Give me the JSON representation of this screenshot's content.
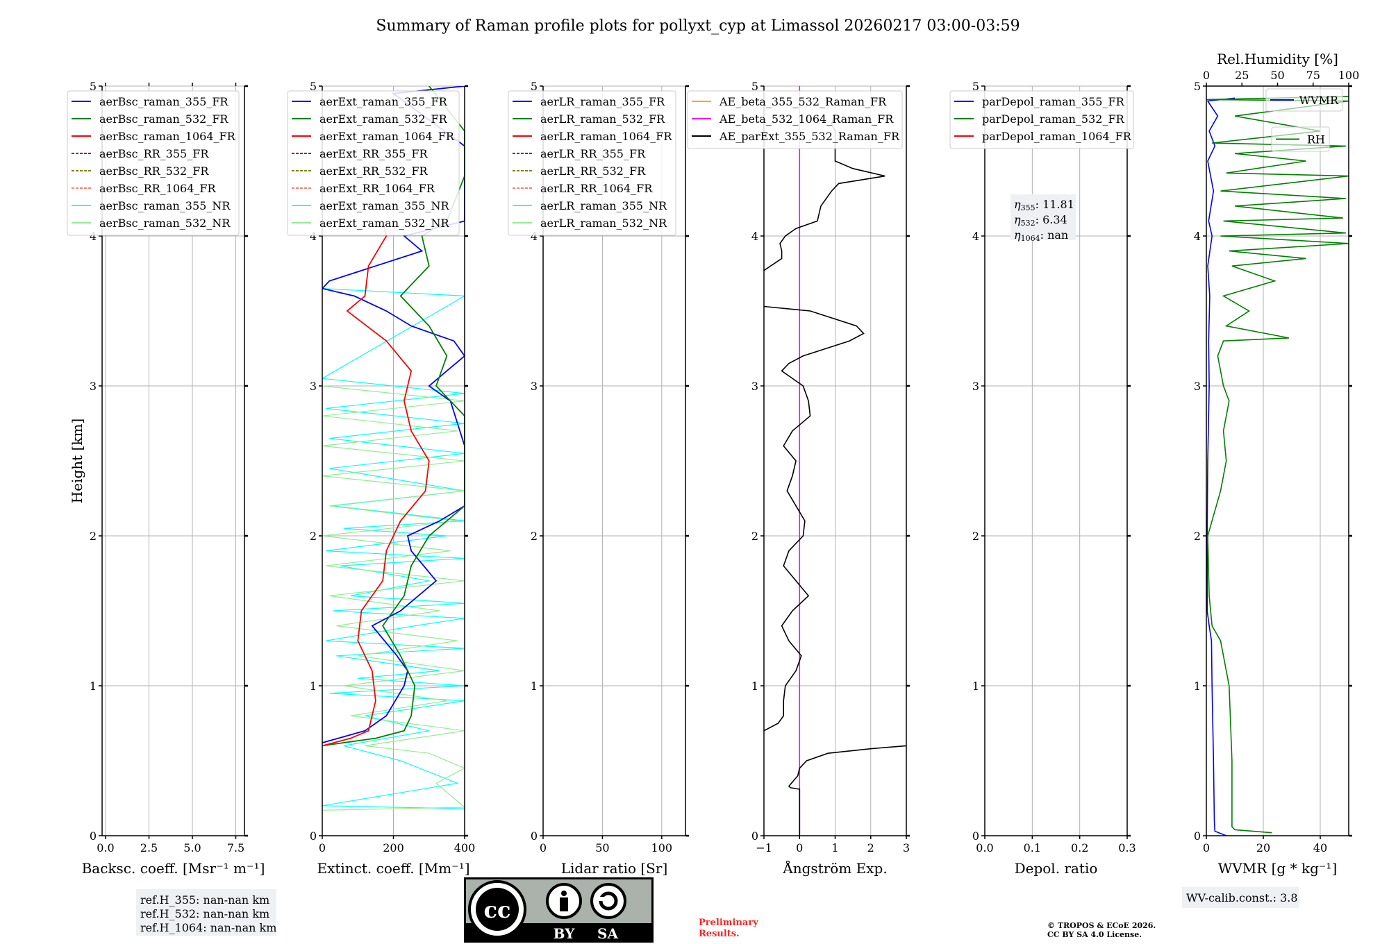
{
  "title": "Summary of Raman profile plots for pollyxt_cyp at Limassol 20260217 03:00-03:59",
  "colors": {
    "blue": "#0000ff",
    "green": "#008000",
    "red": "#ff0000",
    "purple": "#800080",
    "olive": "#808000",
    "salmon": "#fa8072",
    "cyan": "#00ffff",
    "lightgreen": "#90ee90",
    "orange": "#ffa500",
    "magenta": "#ff00ff",
    "black": "#000000"
  },
  "chart_data": [
    {
      "type": "line",
      "id": "bsc",
      "xlabel": "Backsc. coeff. [Msr⁻¹ m⁻¹]",
      "ylabel": "Height [km]",
      "xlim": [
        -0.2,
        8
      ],
      "ylim": [
        0,
        5
      ],
      "xticks": [
        "0.0",
        "2.5",
        "5.0",
        "7.5"
      ],
      "xtickvals": [
        0,
        2.5,
        5,
        7.5
      ],
      "yticks": [
        "0",
        "1",
        "2",
        "3",
        "4",
        "5"
      ],
      "grid": true,
      "legend": [
        {
          "label": "aerBsc_raman_355_FR",
          "color": "blue",
          "dash": false
        },
        {
          "label": "aerBsc_raman_532_FR",
          "color": "green",
          "dash": false
        },
        {
          "label": "aerBsc_raman_1064_FR",
          "color": "red",
          "dash": false
        },
        {
          "label": "aerBsc_RR_355_FR",
          "color": "purple",
          "dash": true
        },
        {
          "label": "aerBsc_RR_532_FR",
          "color": "olive",
          "dash": true
        },
        {
          "label": "aerBsc_RR_1064_FR",
          "color": "salmon",
          "dash": true
        },
        {
          "label": "aerBsc_raman_355_NR",
          "color": "cyan",
          "dash": false
        },
        {
          "label": "aerBsc_raman_532_NR",
          "color": "lightgreen",
          "dash": false
        }
      ],
      "series": []
    },
    {
      "type": "line",
      "id": "ext",
      "xlabel": "Extinct. coeff. [Mm⁻¹]",
      "xlim": [
        0,
        400
      ],
      "ylim": [
        0,
        5
      ],
      "xticks": [
        "0",
        "200",
        "400"
      ],
      "xtickvals": [
        0,
        200,
        400
      ],
      "yticks": [
        "0",
        "1",
        "2",
        "3",
        "4",
        "5"
      ],
      "grid": true,
      "legend": [
        {
          "label": "aerExt_raman_355_FR",
          "color": "blue",
          "dash": false
        },
        {
          "label": "aerExt_raman_532_FR",
          "color": "green",
          "dash": false
        },
        {
          "label": "aerExt_raman_1064_FR",
          "color": "red",
          "dash": false
        },
        {
          "label": "aerExt_RR_355_FR",
          "color": "purple",
          "dash": true
        },
        {
          "label": "aerExt_RR_532_FR",
          "color": "olive",
          "dash": true
        },
        {
          "label": "aerExt_RR_1064_FR",
          "color": "salmon",
          "dash": true
        },
        {
          "label": "aerExt_raman_355_NR",
          "color": "cyan",
          "dash": false
        },
        {
          "label": "aerExt_raman_532_NR",
          "color": "lightgreen",
          "dash": false
        }
      ],
      "series": [
        {
          "name": "aerExt_raman_355_NR",
          "color": "cyan",
          "width": 1.2,
          "h": [
            0.18,
            0.2,
            0.35,
            0.5,
            0.6,
            0.7,
            0.8,
            0.9,
            0.95,
            1.0,
            1.05,
            1.1,
            1.2,
            1.25,
            1.3,
            1.4,
            1.45,
            1.5,
            1.55,
            1.6,
            1.7,
            1.8,
            1.85,
            1.9,
            2.0,
            2.05,
            2.1,
            2.2,
            2.3,
            2.45,
            2.55,
            2.65,
            2.75,
            2.85,
            2.95,
            3.05,
            3.6,
            3.65
          ],
          "x": [
            400,
            0,
            380,
            220,
            60,
            300,
            120,
            400,
            20,
            400,
            100,
            330,
            40,
            400,
            10,
            260,
            400,
            30,
            400,
            80,
            300,
            50,
            400,
            10,
            350,
            60,
            400,
            30,
            400,
            20,
            400,
            20,
            400,
            10,
            400,
            0,
            400,
            0
          ]
        },
        {
          "name": "aerExt_raman_532_NR",
          "color": "lightgreen",
          "width": 1.2,
          "h": [
            0.17,
            0.19,
            0.35,
            0.45,
            0.55,
            0.6,
            0.7,
            0.8,
            0.9,
            1.0,
            1.1,
            1.2,
            1.3,
            1.4,
            1.5,
            1.6,
            1.7,
            1.8,
            1.9,
            2.0,
            2.1,
            2.2,
            2.3,
            2.4,
            2.5,
            2.6,
            2.7,
            2.8,
            2.9,
            3.0
          ],
          "x": [
            0,
            400,
            320,
            400,
            300,
            120,
            400,
            80,
            350,
            60,
            400,
            100,
            380,
            40,
            330,
            20,
            400,
            10,
            360,
            0,
            380,
            20,
            400,
            0,
            400,
            0,
            380,
            0,
            400,
            0
          ]
        },
        {
          "name": "aerExt_raman_355_FR",
          "color": "blue",
          "width": 1.8,
          "h": [
            0.62,
            0.7,
            0.8,
            1.0,
            1.1,
            1.2,
            1.4,
            1.5,
            1.7,
            1.9,
            2.0,
            2.1,
            2.2,
            2.6,
            2.9,
            3.0,
            3.2,
            3.3,
            3.4,
            3.5,
            3.6,
            3.65,
            3.7,
            3.8,
            3.9,
            4.0,
            4.1,
            4.4,
            4.6,
            4.95,
            5.0
          ],
          "x": [
            0,
            120,
            180,
            230,
            240,
            210,
            140,
            220,
            320,
            250,
            240,
            330,
            400,
            400,
            360,
            300,
            400,
            370,
            250,
            180,
            90,
            0,
            20,
            150,
            280,
            230,
            400,
            400,
            400,
            200,
            400
          ]
        },
        {
          "name": "aerExt_raman_532_FR",
          "color": "green",
          "width": 1.8,
          "h": [
            0.6,
            0.65,
            0.7,
            0.8,
            1.0,
            1.2,
            1.4,
            1.6,
            1.8,
            2.0,
            2.2,
            2.8,
            3.0,
            3.2,
            3.4,
            3.6,
            3.8,
            4.0,
            4.1,
            4.4,
            4.7,
            5.0
          ],
          "x": [
            0,
            150,
            230,
            250,
            260,
            220,
            170,
            230,
            250,
            300,
            400,
            400,
            320,
            350,
            300,
            220,
            300,
            280,
            350,
            400,
            400,
            300
          ]
        },
        {
          "name": "aerExt_raman_1064_FR",
          "color": "red",
          "width": 1.8,
          "h": [
            0.6,
            0.65,
            0.7,
            0.9,
            1.1,
            1.3,
            1.5,
            1.7,
            1.9,
            2.1,
            2.3,
            2.5,
            2.7,
            2.9,
            3.1,
            3.3,
            3.5,
            3.6,
            3.8,
            4.0,
            4.1
          ],
          "x": [
            0,
            80,
            130,
            150,
            140,
            100,
            110,
            170,
            180,
            220,
            290,
            300,
            250,
            230,
            250,
            180,
            70,
            120,
            130,
            180,
            170
          ]
        }
      ]
    },
    {
      "type": "line",
      "id": "lr",
      "xlabel": "Lidar ratio [Sr]",
      "xlim": [
        0,
        120
      ],
      "ylim": [
        0,
        5
      ],
      "xticks": [
        "0",
        "50",
        "100"
      ],
      "xtickvals": [
        0,
        50,
        100
      ],
      "yticks": [
        "0",
        "1",
        "2",
        "3",
        "4",
        "5"
      ],
      "grid": true,
      "legend": [
        {
          "label": "aerLR_raman_355_FR",
          "color": "blue",
          "dash": false
        },
        {
          "label": "aerLR_raman_532_FR",
          "color": "green",
          "dash": false
        },
        {
          "label": "aerLR_raman_1064_FR",
          "color": "red",
          "dash": false
        },
        {
          "label": "aerLR_RR_355_FR",
          "color": "purple",
          "dash": true
        },
        {
          "label": "aerLR_RR_532_FR",
          "color": "olive",
          "dash": true
        },
        {
          "label": "aerLR_RR_1064_FR",
          "color": "salmon",
          "dash": true
        },
        {
          "label": "aerLR_raman_355_NR",
          "color": "cyan",
          "dash": false
        },
        {
          "label": "aerLR_raman_532_NR",
          "color": "lightgreen",
          "dash": false
        }
      ],
      "series": []
    },
    {
      "type": "line",
      "id": "ae",
      "xlabel": "Ångström Exp.",
      "xlim": [
        -1,
        3
      ],
      "ylim": [
        0,
        5
      ],
      "xticks": [
        "−1",
        "0",
        "1",
        "2",
        "3"
      ],
      "xtickvals": [
        -1,
        0,
        1,
        2,
        3
      ],
      "yticks": [
        "0",
        "1",
        "2",
        "3",
        "4",
        "5"
      ],
      "grid": true,
      "legend": [
        {
          "label": "AE_beta_355_532_Raman_FR",
          "color": "orange",
          "dash": false
        },
        {
          "label": "AE_beta_532_1064_Raman_FR",
          "color": "magenta",
          "dash": false
        },
        {
          "label": "AE_parExt_355_532_Raman_FR",
          "color": "black",
          "dash": false
        }
      ],
      "series": [
        {
          "name": "AE_beta_532_1064_Raman_FR",
          "color": "magenta",
          "width": 1.6,
          "h": [
            0,
            5
          ],
          "x": [
            0,
            0
          ]
        },
        {
          "name": "AE_parExt_355_532_Raman_FR (a)",
          "color": "black",
          "width": 1.6,
          "h": [
            0,
            0.31,
            0.32,
            0.33,
            0.4,
            0.45,
            0.5,
            0.55,
            0.58,
            0.6
          ],
          "x": [
            0,
            0,
            -0.25,
            -0.3,
            -0.05,
            0,
            0.2,
            0.8,
            2.0,
            3.0
          ]
        },
        {
          "name": "AE_parExt_355_532_Raman_FR (b)",
          "color": "black",
          "width": 1.6,
          "h": [
            0.7,
            0.75,
            0.8,
            0.9,
            1.0,
            1.1,
            1.2,
            1.3,
            1.4,
            1.5,
            1.6,
            1.7,
            1.8,
            1.9,
            2.0,
            2.1,
            2.2,
            2.3,
            2.4,
            2.5,
            2.6,
            2.7,
            2.8,
            2.9,
            3.0,
            3.1,
            3.15,
            3.2,
            3.3,
            3.35,
            3.4,
            3.5,
            3.53
          ],
          "x": [
            -1,
            -0.6,
            -0.45,
            -0.45,
            -0.4,
            -0.1,
            0.05,
            -0.3,
            -0.5,
            -0.2,
            0.25,
            -0.1,
            -0.45,
            -0.3,
            0.1,
            0.15,
            -0.1,
            -0.35,
            -0.2,
            -0.1,
            -0.45,
            -0.2,
            0.3,
            0.25,
            0.1,
            -0.5,
            -0.3,
            0.1,
            1.4,
            1.8,
            1.6,
            0.3,
            -1
          ]
        },
        {
          "name": "AE_parExt_355_532_Raman_FR (c)",
          "color": "black",
          "width": 1.6,
          "h": [
            3.77,
            3.85,
            3.9,
            3.95,
            4.0,
            4.05,
            4.1,
            4.2,
            4.3,
            4.35,
            4.4,
            4.45,
            4.5,
            4.6,
            4.7,
            4.75,
            4.8
          ],
          "x": [
            -1,
            -0.5,
            -0.5,
            -0.55,
            -0.4,
            -0.1,
            0.5,
            0.6,
            0.9,
            1.1,
            2.4,
            1.5,
            1.0,
            1.0,
            1.0,
            0.9,
            1.0
          ]
        }
      ]
    },
    {
      "type": "line",
      "id": "depol",
      "xlabel": "Depol. ratio",
      "xlim": [
        0,
        0.3
      ],
      "ylim": [
        0,
        5
      ],
      "xticks": [
        "0.0",
        "0.1",
        "0.2",
        "0.3"
      ],
      "xtickvals": [
        0,
        0.1,
        0.2,
        0.3
      ],
      "yticks": [
        "0",
        "1",
        "2",
        "3",
        "4",
        "5"
      ],
      "grid": true,
      "legend": [
        {
          "label": "parDepol_raman_355_FR",
          "color": "blue",
          "dash": false
        },
        {
          "label": "parDepol_raman_532_FR",
          "color": "green",
          "dash": false
        },
        {
          "label": "parDepol_raman_1064_FR",
          "color": "red",
          "dash": false
        }
      ],
      "series": [],
      "annotation": [
        {
          "sym": "η",
          "sub": "355",
          "value": ": 11.81"
        },
        {
          "sym": "η",
          "sub": "532",
          "value": ": 6.34"
        },
        {
          "sym": "η",
          "sub": "1064",
          "value": ": nan"
        }
      ]
    },
    {
      "type": "line",
      "id": "wv",
      "xlabel": "WVMR [g * kg⁻¹]",
      "toplabel": "Rel.Humidity [%]",
      "xlim": [
        0,
        50
      ],
      "toplim": [
        0,
        100
      ],
      "ylim": [
        0,
        5
      ],
      "xticks": [
        "0",
        "20",
        "40"
      ],
      "xtickvals": [
        0,
        20,
        40
      ],
      "topticks": [
        "0",
        "25",
        "50",
        "75",
        "100"
      ],
      "toptickvals": [
        0,
        25,
        50,
        75,
        100
      ],
      "yticks": [
        "0",
        "1",
        "2",
        "3",
        "4",
        "5"
      ],
      "grid": true,
      "legend": [
        {
          "label": "WVMR",
          "color": "blue"
        },
        {
          "label": "RH",
          "color": "green"
        }
      ],
      "series": [
        {
          "name": "WVMR",
          "color": "blue",
          "width": 1.6,
          "h": [
            0,
            0.03,
            0.1,
            0.5,
            1.0,
            1.3,
            1.4,
            1.5,
            2.0,
            2.5,
            3.0,
            3.3,
            3.6,
            3.8,
            4.0,
            4.1,
            4.3,
            4.5,
            4.6,
            4.7,
            4.8,
            4.9,
            4.92
          ],
          "x": [
            7,
            3,
            2.8,
            2.5,
            2,
            1.8,
            1,
            0.3,
            0.3,
            0.5,
            1,
            0.8,
            1.2,
            0.5,
            2,
            0.8,
            2.5,
            0.5,
            3,
            1,
            4,
            0.5,
            10
          ]
        },
        {
          "name": "RH",
          "axis": "top",
          "color": "green",
          "width": 1.6,
          "h": [
            0.02,
            0.04,
            0.06,
            0.5,
            1.0,
            1.3,
            1.4,
            1.6,
            2.0,
            2.3,
            2.5,
            2.7,
            2.9,
            3.0,
            3.1,
            3.2,
            3.3,
            3.32,
            3.4,
            3.5,
            3.6,
            3.7,
            3.8,
            3.85,
            3.9,
            3.95,
            4.0,
            4.02,
            4.1,
            4.12,
            4.2,
            4.25,
            4.3,
            4.4,
            4.42,
            4.5,
            4.55,
            4.6,
            4.62,
            4.7,
            4.8,
            4.9,
            4.91,
            4.93
          ],
          "x": [
            46,
            20,
            18,
            18,
            16,
            10,
            4,
            2,
            1,
            10,
            14,
            12,
            16,
            12,
            10,
            8,
            12,
            58,
            14,
            30,
            12,
            48,
            18,
            70,
            16,
            100,
            10,
            98,
            12,
            96,
            20,
            98,
            10,
            100,
            14,
            70,
            20,
            98,
            4,
            80,
            20,
            100,
            0,
            100
          ]
        }
      ]
    }
  ],
  "footer": {
    "refH": [
      "ref.H_355: nan-nan km",
      "ref.H_532: nan-nan km",
      "ref.H_1064: nan-nan km"
    ],
    "wv_calib": "WV-calib.const.: 3.8",
    "preliminary": [
      "Preliminary",
      "Results."
    ],
    "copyright": [
      "© TROPOS & ECoE 2026.",
      "CC BY SA 4.0 License."
    ],
    "license_logo": {
      "cc": "cc",
      "by": "BY",
      "sa": "SA"
    }
  }
}
